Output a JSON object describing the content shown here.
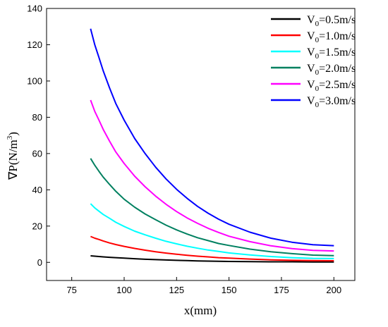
{
  "chart_data": {
    "type": "line",
    "xlabel": "x(mm)",
    "ylabel_parts": [
      "∇P(N/m",
      "3",
      ")"
    ],
    "xlim": [
      63,
      210
    ],
    "ylim": [
      -10,
      140
    ],
    "xticks": [
      75,
      100,
      125,
      150,
      175,
      200
    ],
    "yticks": [
      0,
      20,
      40,
      60,
      80,
      100,
      120,
      140
    ],
    "grid": false,
    "legend_position": "top-right",
    "x": [
      84,
      86,
      88,
      90,
      93,
      96,
      100,
      105,
      110,
      115,
      120,
      125,
      130,
      135,
      140,
      145,
      150,
      160,
      170,
      180,
      190,
      200
    ],
    "series": [
      {
        "legend": {
          "base": "V",
          "sub": "0",
          "rest": "=0.5m/s"
        },
        "color": "#000000",
        "values": [
          3.6,
          3.4,
          3.2,
          3.0,
          2.8,
          2.6,
          2.3,
          2.0,
          1.7,
          1.5,
          1.3,
          1.1,
          1.0,
          0.8,
          0.7,
          0.6,
          0.5,
          0.4,
          0.3,
          0.3,
          0.2,
          0.2
        ]
      },
      {
        "legend": {
          "base": "V",
          "sub": "0",
          "rest": "=1.0m/s"
        },
        "color": "#ff0000",
        "values": [
          14.3,
          13.3,
          12.6,
          11.8,
          10.7,
          9.8,
          8.8,
          7.7,
          6.7,
          5.8,
          5.1,
          4.5,
          3.9,
          3.4,
          3.0,
          2.6,
          2.3,
          1.8,
          1.4,
          1.1,
          1.0,
          0.9
        ]
      },
      {
        "legend": {
          "base": "V",
          "sub": "0",
          "rest": "=1.5m/s"
        },
        "color": "#00ffff",
        "values": [
          32.3,
          30.0,
          28.2,
          26.4,
          24.3,
          22.1,
          19.8,
          17.2,
          15.2,
          13.3,
          11.6,
          10.2,
          8.9,
          7.8,
          6.8,
          6.0,
          5.2,
          4.1,
          3.2,
          2.6,
          2.2,
          2.1
        ]
      },
      {
        "legend": {
          "base": "V",
          "sub": "0",
          "rest": "=2.0m/s"
        },
        "color": "#008060",
        "values": [
          57.3,
          53.5,
          50.2,
          47.0,
          43.0,
          39.2,
          34.8,
          30.4,
          26.7,
          23.5,
          20.5,
          17.9,
          15.6,
          13.6,
          12.0,
          10.4,
          9.3,
          7.3,
          5.8,
          4.8,
          4.0,
          3.7
        ]
      },
      {
        "legend": {
          "base": "V",
          "sub": "0",
          "rest": "=2.5m/s"
        },
        "color": "#ff00ff",
        "values": [
          89.5,
          83.2,
          78.4,
          73.3,
          66.9,
          60.9,
          54.5,
          47.5,
          41.7,
          36.5,
          32.0,
          28.0,
          24.5,
          21.5,
          18.8,
          16.5,
          14.4,
          11.4,
          9.1,
          7.6,
          6.6,
          6.3
        ]
      },
      {
        "legend": {
          "base": "V",
          "sub": "0",
          "rest": "=3.0m/s"
        },
        "color": "#0000ff",
        "values": [
          128.8,
          119.9,
          112.9,
          105.6,
          96.3,
          87.6,
          78.4,
          68.3,
          60.0,
          52.5,
          46.0,
          40.3,
          35.3,
          30.9,
          27.1,
          23.8,
          21.0,
          16.6,
          13.3,
          11.1,
          9.7,
          9.2
        ]
      }
    ]
  }
}
